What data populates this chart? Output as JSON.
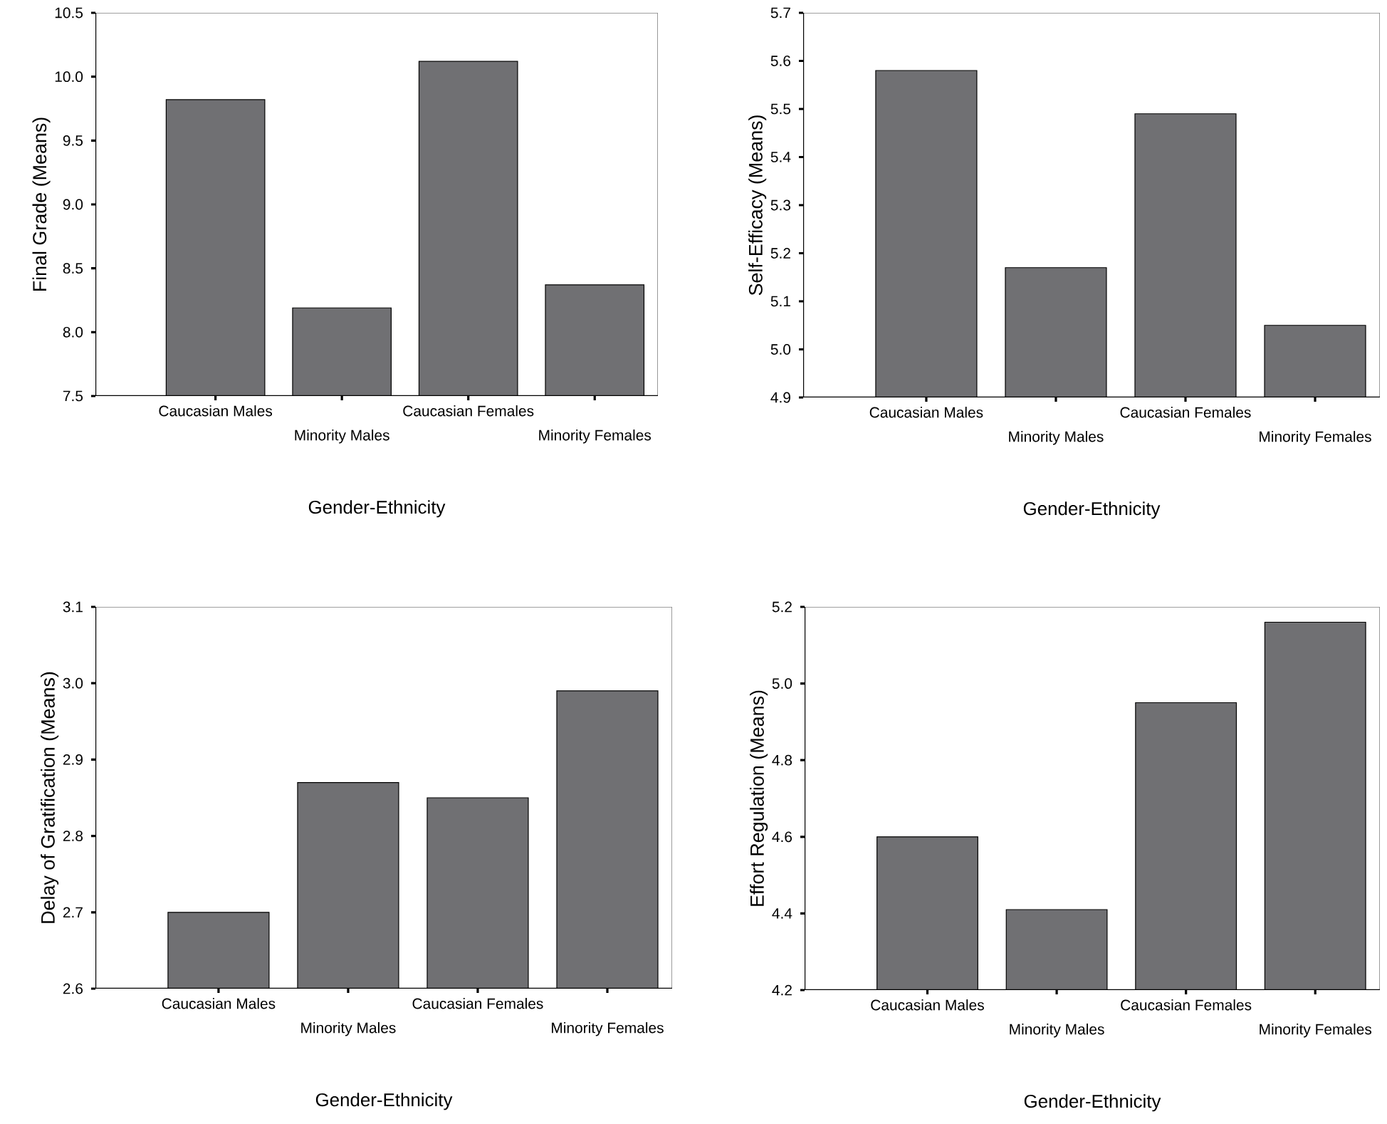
{
  "chart_data": [
    {
      "type": "bar",
      "categories": [
        "Caucasian Males",
        "Minority Males",
        "Caucasian Females",
        "Minority Females"
      ],
      "values": [
        9.82,
        8.19,
        10.12,
        8.37
      ],
      "color": "#707073",
      "xlabel": "Gender-Ethnicity",
      "ylabel": "Final Grade (Means)",
      "ylim": [
        7.5,
        10.5
      ],
      "yticks": [
        7.5,
        {
          "value": 8,
          "label": "8.0"
        },
        8.5,
        {
          "value": 9,
          "label": "9.0"
        },
        9.5,
        {
          "value": 10,
          "label": "10.0"
        },
        10.5
      ]
    },
    {
      "type": "bar",
      "categories": [
        "Caucasian Males",
        "Minority Males",
        "Caucasian Females",
        "Minority Females"
      ],
      "values": [
        5.58,
        5.17,
        5.49,
        5.05
      ],
      "color": "#707073",
      "xlabel": "Gender-Ethnicity",
      "ylabel": "Self-Efficacy (Means)",
      "ylim": [
        4.9,
        5.7
      ],
      "yticks": [
        4.9,
        {
          "value": 5,
          "label": "5.0"
        },
        5.1,
        5.2,
        5.3,
        5.4,
        5.5,
        5.6,
        5.7
      ]
    },
    {
      "type": "bar",
      "categories": [
        "Caucasian Males",
        "Minority Males",
        "Caucasian Females",
        "Minority Females"
      ],
      "values": [
        2.7,
        2.87,
        2.85,
        2.99
      ],
      "color": "#707073",
      "xlabel": "Gender-Ethnicity",
      "ylabel": "Delay of Gratification (Means)",
      "ylim": [
        2.6,
        3.1
      ],
      "yticks": [
        2.6,
        2.7,
        2.8,
        2.9,
        {
          "value": 3,
          "label": "3.0"
        },
        3.1
      ]
    },
    {
      "type": "bar",
      "categories": [
        "Caucasian Males",
        "Minority Males",
        "Caucasian Females",
        "Minority Females"
      ],
      "values": [
        4.6,
        4.41,
        4.95,
        5.16
      ],
      "color": "#707073",
      "xlabel": "Gender-Ethnicity",
      "ylabel": "Effort Regulation (Means)",
      "ylim": [
        4.2,
        5.2
      ],
      "yticks": [
        4.2,
        4.4,
        4.6,
        4.8,
        {
          "value": 5,
          "label": "5.0"
        },
        5.2
      ]
    }
  ]
}
